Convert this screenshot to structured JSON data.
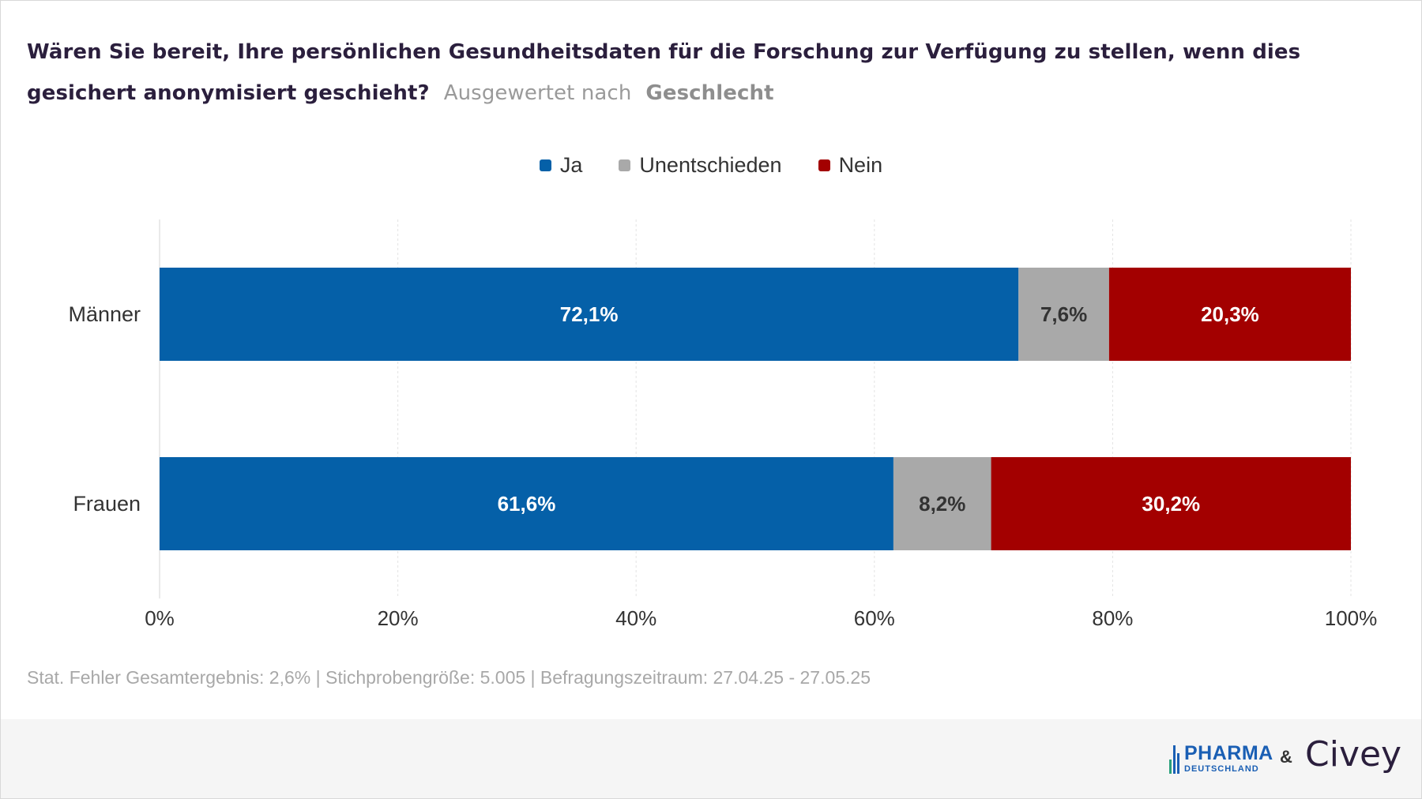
{
  "header": {
    "question": "Wären Sie bereit, Ihre persönlichen Gesundheitsdaten für die Forschung zur Verfügung zu stellen, wenn dies gesichert anonymisiert geschieht?",
    "sub_label": "Ausgewertet nach",
    "sub_value": "Geschlecht"
  },
  "legend": [
    {
      "label": "Ja",
      "color": "#0560a8"
    },
    {
      "label": "Unentschieden",
      "color": "#a9a9a9"
    },
    {
      "label": "Nein",
      "color": "#a30000"
    }
  ],
  "chart_data": {
    "type": "bar",
    "orientation": "horizontal",
    "stacked": true,
    "categories": [
      "Männer",
      "Frauen"
    ],
    "series": [
      {
        "name": "Ja",
        "values": [
          72.1,
          61.6
        ],
        "labels": [
          "72,1%",
          "61,6%"
        ],
        "color": "#0560a8",
        "label_color": "#ffffff"
      },
      {
        "name": "Unentschieden",
        "values": [
          7.6,
          8.2
        ],
        "labels": [
          "7,6%",
          "8,2%"
        ],
        "color": "#a9a9a9",
        "label_color": "#333333"
      },
      {
        "name": "Nein",
        "values": [
          20.3,
          30.2
        ],
        "labels": [
          "20,3%",
          "30,2%"
        ],
        "color": "#a30000",
        "label_color": "#ffffff"
      }
    ],
    "xlim": [
      0,
      100
    ],
    "xticks": [
      0,
      20,
      40,
      60,
      80,
      100
    ],
    "xtick_labels": [
      "0%",
      "20%",
      "40%",
      "60%",
      "80%",
      "100%"
    ],
    "grid": true,
    "legend_position": "top-center"
  },
  "footnote": "Stat. Fehler Gesamtergebnis: 2,6% | Stichprobengröße: 5.005 | Befragungszeitraum: 27.04.25 - 27.05.25",
  "branding": {
    "pharma_main": "PHARMA",
    "pharma_sub": "DEUTSCHLAND",
    "ampersand": "&",
    "civey": "Civey"
  }
}
